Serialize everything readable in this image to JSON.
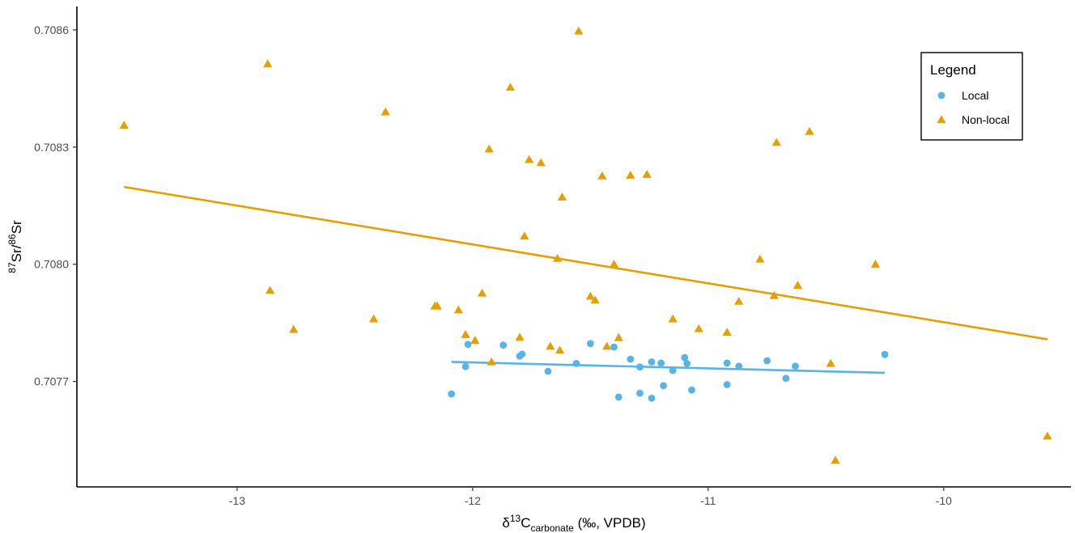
{
  "chart_data": {
    "type": "scatter",
    "xlabel": {
      "main": "δ",
      "sup": "13",
      "base": "C",
      "sub": "carbonate",
      "tail": " (‰, VPDB)"
    },
    "ylabel": {
      "sup1": "87",
      "mid1": "Sr/",
      "sup2": "86",
      "mid2": "Sr"
    },
    "xlim": [
      -13.68,
      -9.46
    ],
    "ylim": [
      0.70743,
      0.70866
    ],
    "xticks": [
      -13,
      -12,
      -11,
      -10
    ],
    "xtick_labels": [
      "-13",
      "-12",
      "-11",
      "-10"
    ],
    "yticks": [
      0.7077,
      0.708,
      0.7083,
      0.7086
    ],
    "ytick_labels": [
      "0.7077",
      "0.7080",
      "0.7083",
      "0.7086"
    ],
    "grid": false,
    "legend": {
      "title": "Legend",
      "position": "top-right",
      "entries": [
        {
          "label": "Local",
          "series": 0
        },
        {
          "label": "Non-local",
          "series": 1
        }
      ]
    },
    "series": [
      {
        "name": "Local",
        "marker": "circle",
        "color": "#56B4E9",
        "points": [
          [
            -12.09,
            0.707668
          ],
          [
            -12.03,
            0.707738
          ],
          [
            -12.02,
            0.707795
          ],
          [
            -11.87,
            0.707793
          ],
          [
            -11.8,
            0.707765
          ],
          [
            -11.79,
            0.70777
          ],
          [
            -11.68,
            0.707726
          ],
          [
            -11.56,
            0.707746
          ],
          [
            -11.5,
            0.707797
          ],
          [
            -11.4,
            0.707788
          ],
          [
            -11.38,
            0.70766
          ],
          [
            -11.33,
            0.707757
          ],
          [
            -11.29,
            0.707737
          ],
          [
            -11.29,
            0.70767
          ],
          [
            -11.24,
            0.70775
          ],
          [
            -11.24,
            0.707657
          ],
          [
            -11.2,
            0.707747
          ],
          [
            -11.19,
            0.707689
          ],
          [
            -11.15,
            0.707728
          ],
          [
            -11.1,
            0.707761
          ],
          [
            -11.09,
            0.707746
          ],
          [
            -11.07,
            0.707678
          ],
          [
            -10.92,
            0.707747
          ],
          [
            -10.92,
            0.707692
          ],
          [
            -10.87,
            0.707739
          ],
          [
            -10.75,
            0.707753
          ],
          [
            -10.67,
            0.707708
          ],
          [
            -10.63,
            0.707739
          ],
          [
            -10.25,
            0.707769
          ]
        ],
        "trend": {
          "x": [
            -12.09,
            -10.25
          ],
          "y": [
            0.70775,
            0.707722
          ]
        }
      },
      {
        "name": "Non-local",
        "marker": "triangle",
        "color": "#E69F00",
        "points": [
          [
            -13.48,
            0.708356
          ],
          [
            -12.87,
            0.708513
          ],
          [
            -12.86,
            0.707933
          ],
          [
            -12.76,
            0.707833
          ],
          [
            -12.42,
            0.70786
          ],
          [
            -12.37,
            0.70839
          ],
          [
            -12.16,
            0.707893
          ],
          [
            -12.15,
            0.707893
          ],
          [
            -12.06,
            0.707883
          ],
          [
            -12.03,
            0.70782
          ],
          [
            -11.99,
            0.707805
          ],
          [
            -11.96,
            0.707926
          ],
          [
            -11.93,
            0.708295
          ],
          [
            -11.92,
            0.70775
          ],
          [
            -11.84,
            0.708453
          ],
          [
            -11.8,
            0.707813
          ],
          [
            -11.78,
            0.708072
          ],
          [
            -11.76,
            0.708268
          ],
          [
            -11.71,
            0.70826
          ],
          [
            -11.67,
            0.70779
          ],
          [
            -11.64,
            0.708015
          ],
          [
            -11.63,
            0.70778
          ],
          [
            -11.62,
            0.708172
          ],
          [
            -11.55,
            0.708597
          ],
          [
            -11.5,
            0.707918
          ],
          [
            -11.48,
            0.707908
          ],
          [
            -11.45,
            0.708226
          ],
          [
            -11.43,
            0.70779
          ],
          [
            -11.4,
            0.708
          ],
          [
            -11.38,
            0.707812
          ],
          [
            -11.33,
            0.708228
          ],
          [
            -11.26,
            0.70823
          ],
          [
            -11.15,
            0.70786
          ],
          [
            -11.04,
            0.707835
          ],
          [
            -10.92,
            0.707826
          ],
          [
            -10.87,
            0.707905
          ],
          [
            -10.78,
            0.708013
          ],
          [
            -10.72,
            0.70792
          ],
          [
            -10.71,
            0.708312
          ],
          [
            -10.62,
            0.707946
          ],
          [
            -10.57,
            0.70834
          ],
          [
            -10.48,
            0.707746
          ],
          [
            -10.46,
            0.707498
          ],
          [
            -10.29,
            0.708
          ],
          [
            -9.56,
            0.70756
          ]
        ],
        "trend": {
          "x": [
            -13.48,
            -9.56
          ],
          "y": [
            0.708198,
            0.707808
          ]
        }
      }
    ]
  }
}
